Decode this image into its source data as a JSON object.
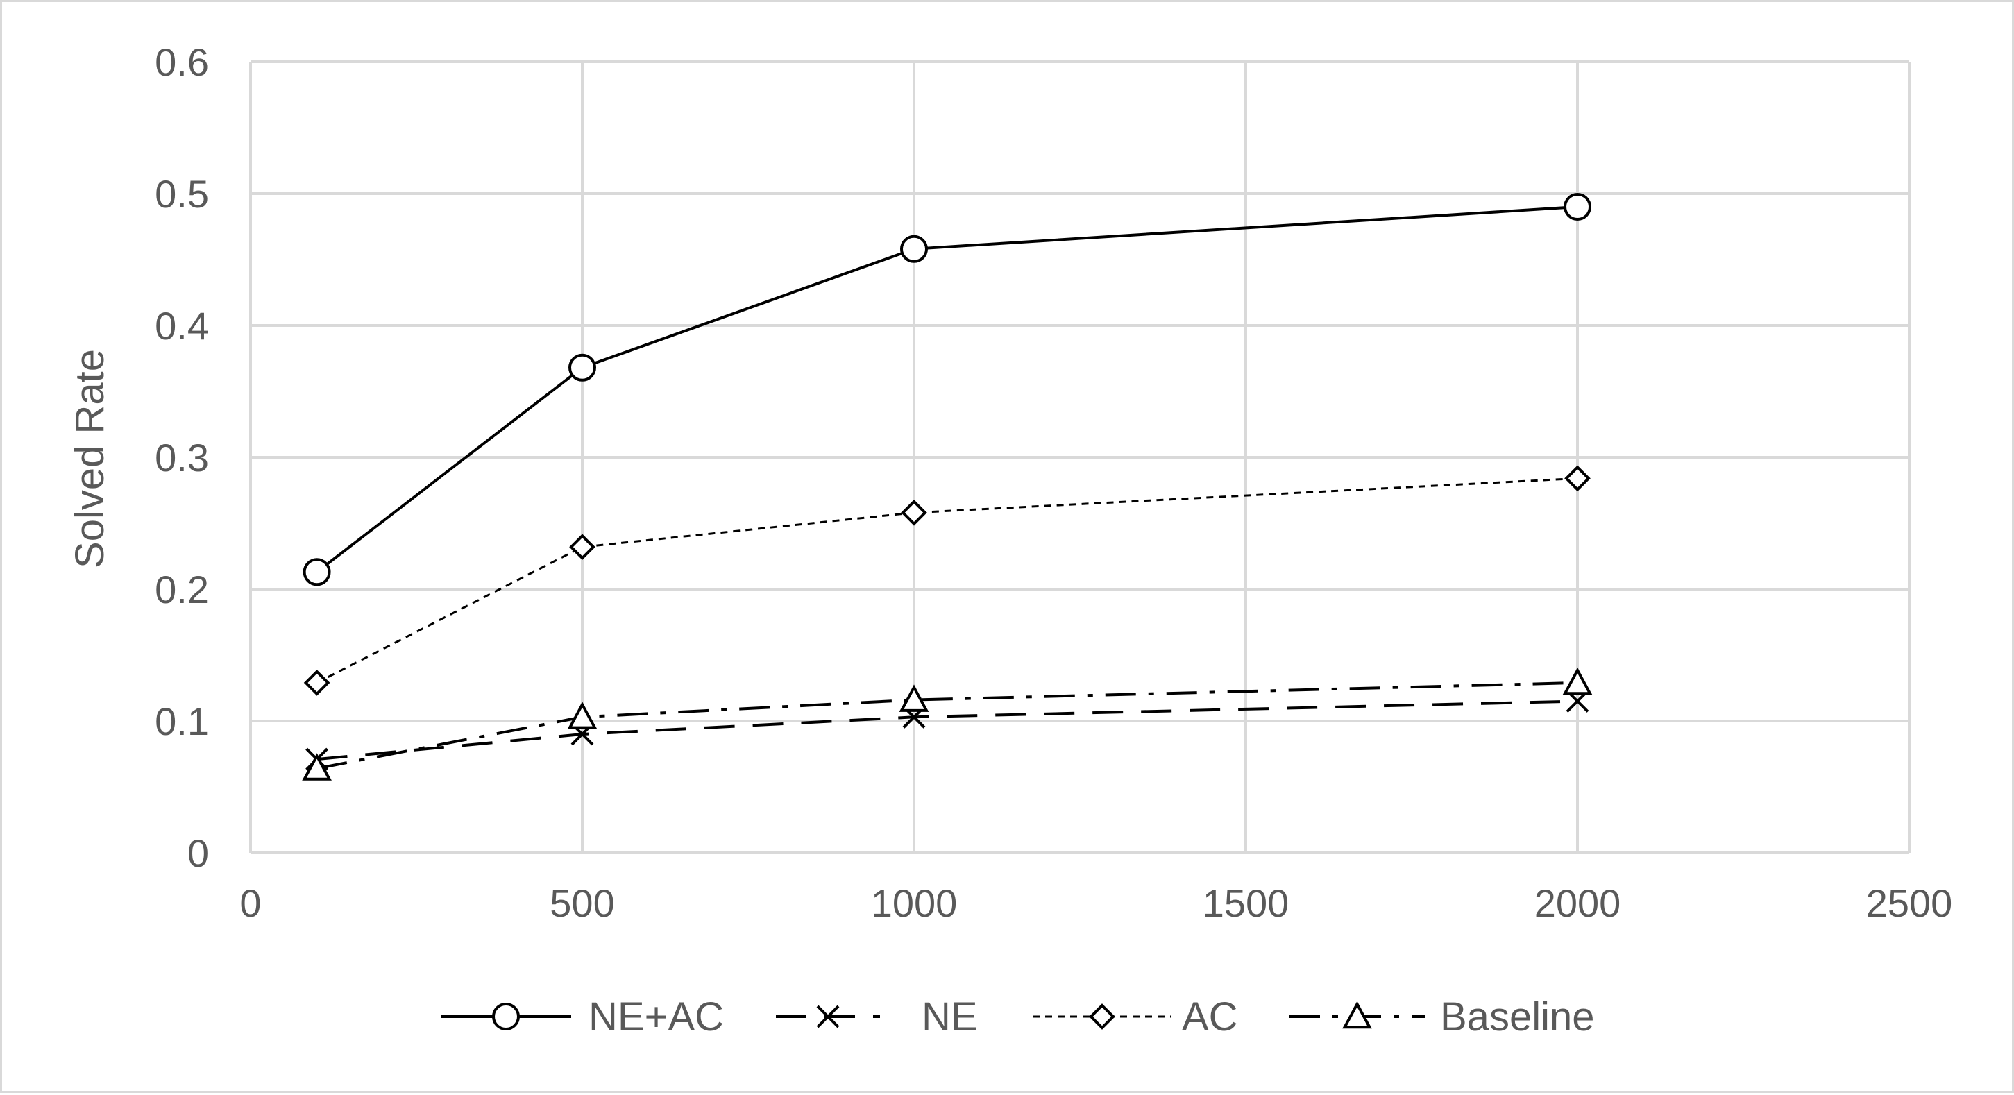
{
  "chart_data": {
    "type": "line",
    "title": "",
    "xlabel": "",
    "ylabel": "Solved Rate",
    "xlim": [
      0,
      2500
    ],
    "ylim": [
      0,
      0.6
    ],
    "x_ticks": [
      0,
      500,
      1000,
      1500,
      2000,
      2500
    ],
    "y_ticks": [
      0,
      0.1,
      0.2,
      0.3,
      0.4,
      0.5,
      0.6
    ],
    "x_tick_labels": [
      "0",
      "500",
      "1000",
      "1500",
      "2000",
      "2500"
    ],
    "y_tick_labels": [
      "0",
      "0.1",
      "0.2",
      "0.3",
      "0.4",
      "0.5",
      "0.6"
    ],
    "grid": true,
    "legend_position": "bottom",
    "x": [
      100,
      500,
      1000,
      2000
    ],
    "series": [
      {
        "name": "NE+AC",
        "values": [
          0.213,
          0.368,
          0.458,
          0.49
        ],
        "marker": "circle",
        "line": "solid",
        "color": "#000000"
      },
      {
        "name": "NE",
        "values": [
          0.071,
          0.09,
          0.103,
          0.115
        ],
        "marker": "x",
        "line": "long-dash",
        "color": "#000000"
      },
      {
        "name": "AC",
        "values": [
          0.129,
          0.232,
          0.258,
          0.284
        ],
        "marker": "diamond",
        "line": "dotted",
        "color": "#000000"
      },
      {
        "name": "Baseline",
        "values": [
          0.064,
          0.103,
          0.116,
          0.129
        ],
        "marker": "triangle",
        "line": "dash-dot",
        "color": "#000000"
      }
    ]
  }
}
